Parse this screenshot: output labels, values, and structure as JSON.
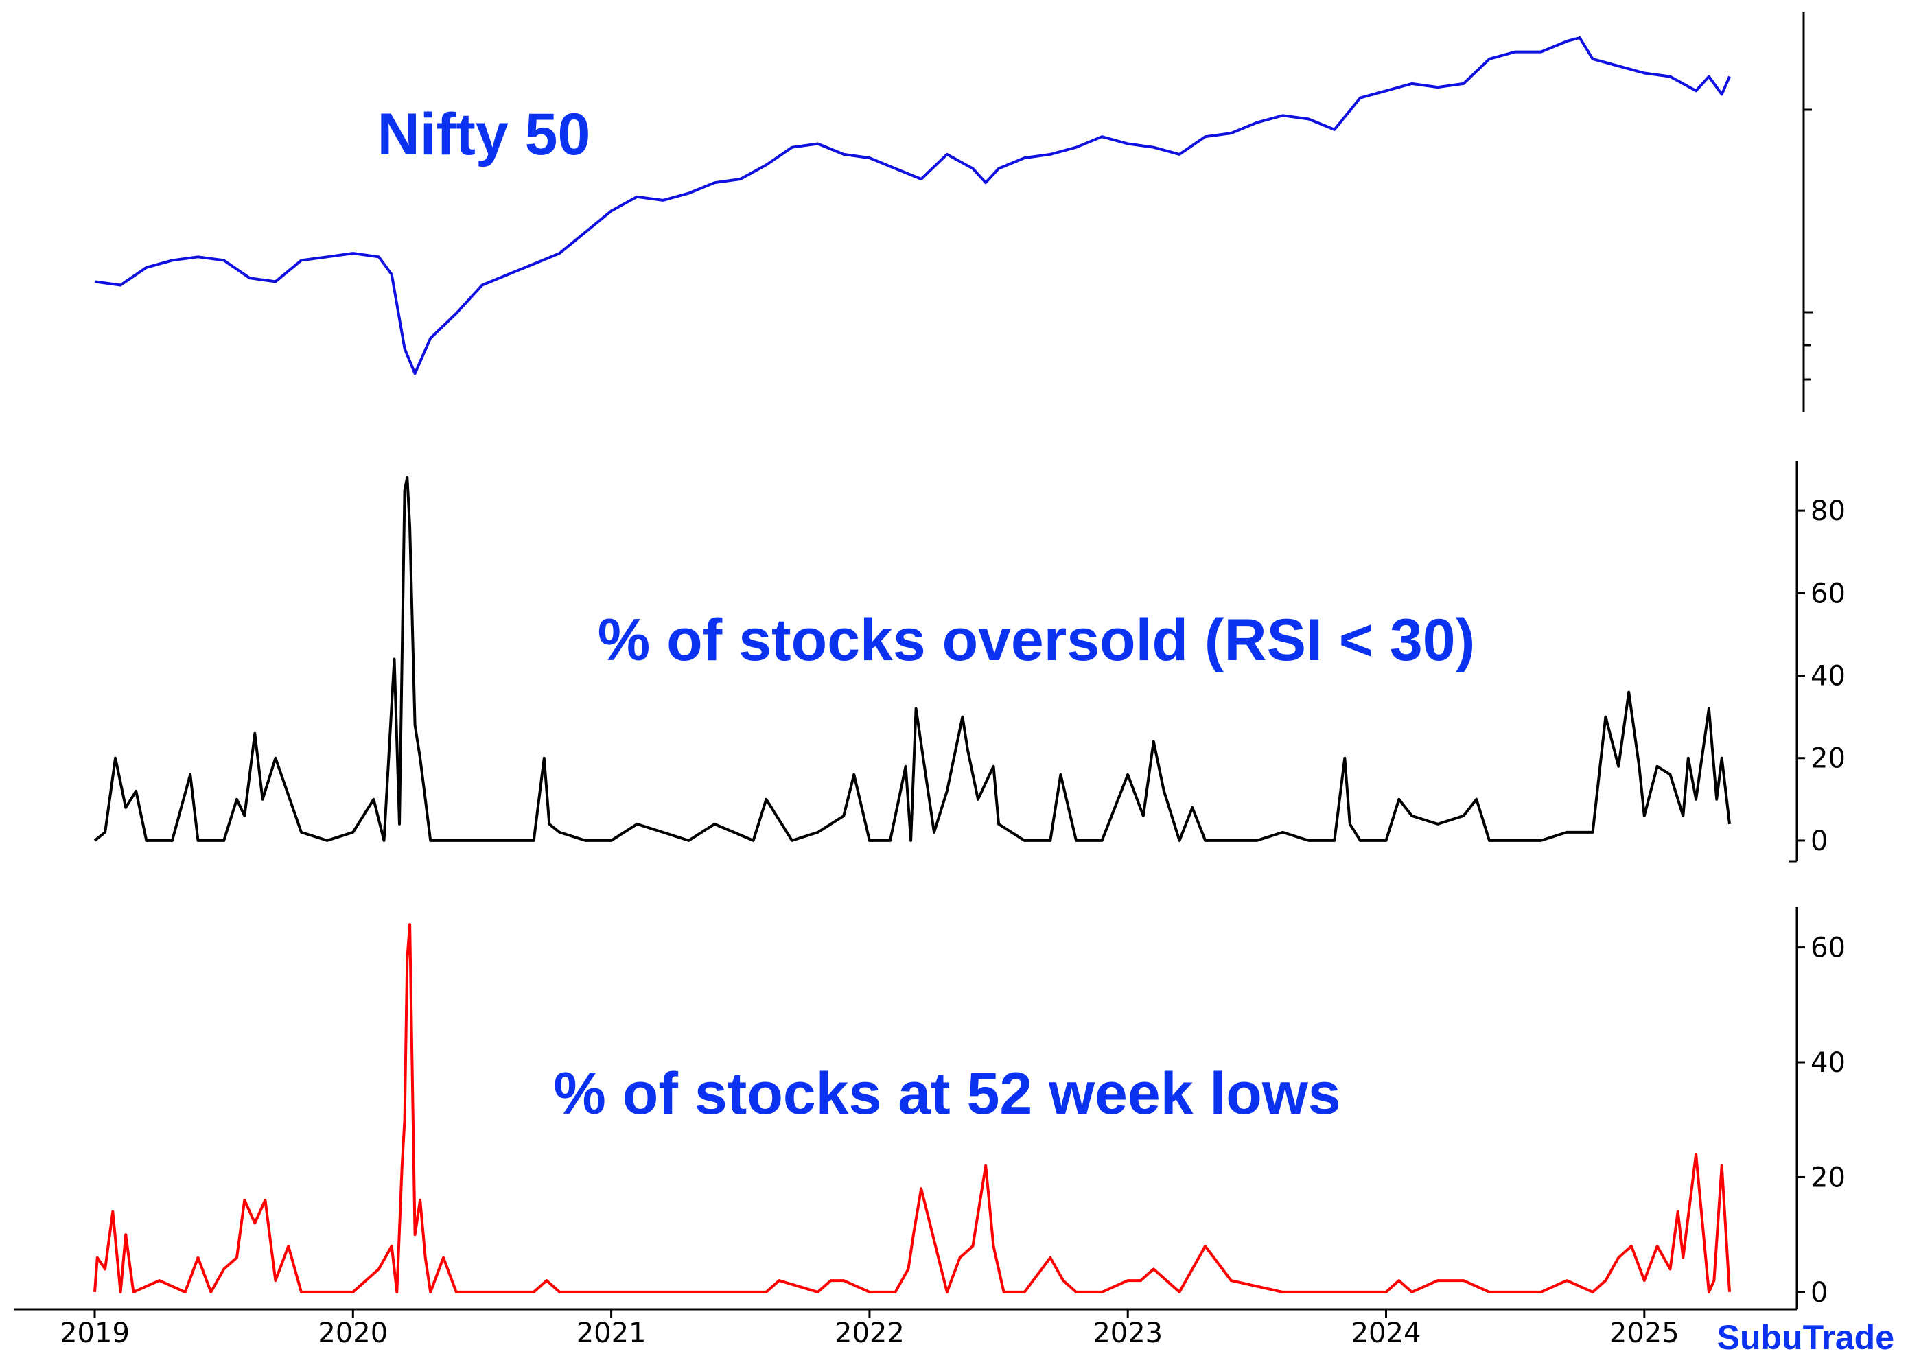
{
  "brand": {
    "label": "SubuTrade",
    "color": "#0a32f0"
  },
  "chart_data": [
    {
      "type": "line",
      "title": "Nifty 50",
      "color": "#1010e0",
      "x_range": [
        2019.0,
        2025.33
      ],
      "y_range_relative": [
        0,
        1
      ],
      "x": [
        2019.0,
        2019.1,
        2019.2,
        2019.3,
        2019.4,
        2019.5,
        2019.6,
        2019.7,
        2019.8,
        2019.9,
        2020.0,
        2020.1,
        2020.15,
        2020.2,
        2020.24,
        2020.3,
        2020.4,
        2020.5,
        2020.6,
        2020.7,
        2020.8,
        2020.9,
        2021.0,
        2021.1,
        2021.2,
        2021.3,
        2021.4,
        2021.5,
        2021.6,
        2021.7,
        2021.8,
        2021.9,
        2022.0,
        2022.1,
        2022.2,
        2022.3,
        2022.4,
        2022.45,
        2022.5,
        2022.6,
        2022.7,
        2022.8,
        2022.9,
        2023.0,
        2023.1,
        2023.2,
        2023.3,
        2023.4,
        2023.5,
        2023.6,
        2023.7,
        2023.8,
        2023.9,
        2024.0,
        2024.1,
        2024.2,
        2024.3,
        2024.4,
        2024.5,
        2024.6,
        2024.7,
        2024.75,
        2024.8,
        2024.9,
        2025.0,
        2025.1,
        2025.2,
        2025.25,
        2025.3,
        2025.33
      ],
      "y": [
        0.31,
        0.3,
        0.35,
        0.37,
        0.38,
        0.37,
        0.32,
        0.31,
        0.37,
        0.38,
        0.39,
        0.38,
        0.33,
        0.12,
        0.05,
        0.15,
        0.22,
        0.3,
        0.33,
        0.36,
        0.39,
        0.45,
        0.51,
        0.55,
        0.54,
        0.56,
        0.59,
        0.6,
        0.64,
        0.69,
        0.7,
        0.67,
        0.66,
        0.63,
        0.6,
        0.67,
        0.63,
        0.59,
        0.63,
        0.66,
        0.67,
        0.69,
        0.72,
        0.7,
        0.69,
        0.67,
        0.72,
        0.73,
        0.76,
        0.78,
        0.77,
        0.74,
        0.83,
        0.85,
        0.87,
        0.86,
        0.87,
        0.94,
        0.96,
        0.96,
        0.99,
        1.0,
        0.94,
        0.92,
        0.9,
        0.89,
        0.85,
        0.89,
        0.84,
        0.89
      ],
      "y_axis": {
        "label": "",
        "ticks_visible": false
      }
    },
    {
      "type": "line",
      "title": "% of stocks oversold (RSI < 30)",
      "color": "#000000",
      "x_range": [
        2019.0,
        2025.33
      ],
      "ylim": [
        -5,
        92
      ],
      "y_ticks": [
        0,
        20,
        40,
        60,
        80
      ],
      "x": [
        2019.0,
        2019.04,
        2019.08,
        2019.12,
        2019.16,
        2019.2,
        2019.3,
        2019.37,
        2019.4,
        2019.5,
        2019.55,
        2019.58,
        2019.62,
        2019.65,
        2019.7,
        2019.8,
        2019.9,
        2020.0,
        2020.08,
        2020.12,
        2020.16,
        2020.18,
        2020.2,
        2020.21,
        2020.22,
        2020.24,
        2020.26,
        2020.28,
        2020.3,
        2020.4,
        2020.6,
        2020.7,
        2020.74,
        2020.76,
        2020.8,
        2020.9,
        2021.0,
        2021.1,
        2021.2,
        2021.3,
        2021.4,
        2021.55,
        2021.6,
        2021.7,
        2021.8,
        2021.9,
        2021.94,
        2022.0,
        2022.08,
        2022.14,
        2022.16,
        2022.18,
        2022.25,
        2022.3,
        2022.36,
        2022.38,
        2022.42,
        2022.48,
        2022.5,
        2022.6,
        2022.7,
        2022.74,
        2022.8,
        2022.9,
        2023.0,
        2023.06,
        2023.1,
        2023.14,
        2023.2,
        2023.25,
        2023.3,
        2023.4,
        2023.5,
        2023.6,
        2023.7,
        2023.8,
        2023.84,
        2023.86,
        2023.9,
        2024.0,
        2024.05,
        2024.1,
        2024.2,
        2024.3,
        2024.35,
        2024.4,
        2024.5,
        2024.6,
        2024.7,
        2024.8,
        2024.85,
        2024.9,
        2024.94,
        2024.98,
        2025.0,
        2025.05,
        2025.1,
        2025.15,
        2025.17,
        2025.2,
        2025.25,
        2025.28,
        2025.3,
        2025.33
      ],
      "y": [
        0,
        2,
        20,
        8,
        12,
        0,
        0,
        16,
        0,
        0,
        10,
        6,
        26,
        10,
        20,
        2,
        0,
        2,
        10,
        0,
        44,
        4,
        85,
        88,
        76,
        28,
        20,
        10,
        0,
        0,
        0,
        0,
        20,
        4,
        2,
        0,
        0,
        4,
        2,
        0,
        4,
        0,
        10,
        0,
        2,
        6,
        16,
        0,
        0,
        18,
        0,
        32,
        2,
        12,
        30,
        22,
        10,
        18,
        4,
        0,
        0,
        16,
        0,
        0,
        16,
        6,
        24,
        12,
        0,
        8,
        0,
        0,
        0,
        2,
        0,
        0,
        20,
        4,
        0,
        0,
        10,
        6,
        4,
        6,
        10,
        0,
        0,
        0,
        2,
        2,
        30,
        18,
        36,
        18,
        6,
        18,
        16,
        6,
        20,
        10,
        32,
        10,
        20,
        4
      ],
      "y_axis": {
        "label": "",
        "ticks_visible": true
      }
    },
    {
      "type": "line",
      "title": "% of stocks at 52 week lows",
      "color": "#ff0000",
      "x_range": [
        2019.0,
        2025.33
      ],
      "ylim": [
        -3,
        67
      ],
      "y_ticks": [
        0,
        20,
        40,
        60
      ],
      "x_ticks": [
        "2019",
        "2020",
        "2021",
        "2022",
        "2023",
        "2024",
        "2025"
      ],
      "x": [
        2019.0,
        2019.01,
        2019.04,
        2019.07,
        2019.1,
        2019.12,
        2019.15,
        2019.25,
        2019.35,
        2019.4,
        2019.45,
        2019.5,
        2019.55,
        2019.58,
        2019.62,
        2019.66,
        2019.7,
        2019.75,
        2019.8,
        2019.9,
        2020.0,
        2020.05,
        2020.1,
        2020.15,
        2020.17,
        2020.19,
        2020.2,
        2020.21,
        2020.22,
        2020.24,
        2020.26,
        2020.28,
        2020.3,
        2020.35,
        2020.4,
        2020.5,
        2020.7,
        2020.75,
        2020.8,
        2021.0,
        2021.2,
        2021.4,
        2021.6,
        2021.65,
        2021.8,
        2021.85,
        2021.9,
        2022.0,
        2022.05,
        2022.1,
        2022.15,
        2022.17,
        2022.2,
        2022.3,
        2022.35,
        2022.4,
        2022.45,
        2022.48,
        2022.52,
        2022.6,
        2022.7,
        2022.75,
        2022.8,
        2022.9,
        2023.0,
        2023.05,
        2023.1,
        2023.2,
        2023.3,
        2023.4,
        2023.6,
        2023.8,
        2024.0,
        2024.05,
        2024.1,
        2024.2,
        2024.3,
        2024.4,
        2024.6,
        2024.7,
        2024.8,
        2024.85,
        2024.9,
        2024.95,
        2025.0,
        2025.05,
        2025.1,
        2025.13,
        2025.15,
        2025.2,
        2025.25,
        2025.27,
        2025.3,
        2025.33
      ],
      "y": [
        0,
        6,
        4,
        14,
        0,
        10,
        0,
        2,
        0,
        6,
        0,
        4,
        6,
        16,
        12,
        16,
        2,
        8,
        0,
        0,
        0,
        2,
        4,
        8,
        0,
        22,
        30,
        58,
        64,
        10,
        16,
        6,
        0,
        6,
        0,
        0,
        0,
        2,
        0,
        0,
        0,
        0,
        0,
        2,
        0,
        2,
        2,
        0,
        0,
        0,
        4,
        10,
        18,
        0,
        6,
        8,
        22,
        8,
        0,
        0,
        6,
        2,
        0,
        0,
        2,
        2,
        4,
        0,
        8,
        2,
        0,
        0,
        0,
        2,
        0,
        2,
        2,
        0,
        0,
        2,
        0,
        2,
        6,
        8,
        2,
        8,
        4,
        14,
        6,
        24,
        0,
        2,
        22,
        0
      ],
      "y_axis": {
        "label": "",
        "ticks_visible": true
      }
    }
  ]
}
